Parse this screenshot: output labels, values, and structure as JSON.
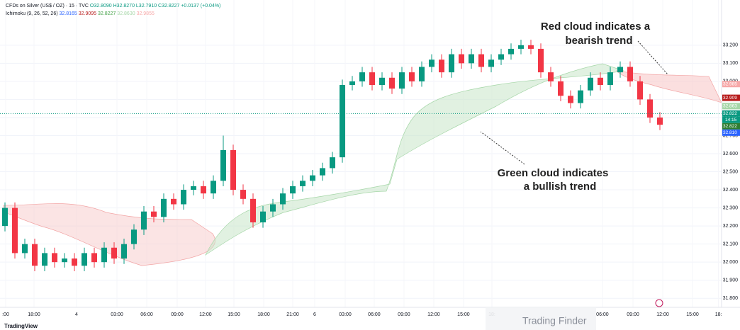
{
  "chart_data": {
    "type": "candlestick",
    "header": "CFDs on Silver (US$ / OZ) · 15 · TVC",
    "ohlc_text": "O32.8090 H32.8270 L32.7910 C32.8227 +0.0137 (+0.04%)",
    "indicator": "Ichimoku (9, 26, 52, 26)",
    "indicator_values": [
      "32.8165",
      "32.9095",
      "32.8227",
      "32.8630",
      "32.9855"
    ],
    "annotations": [
      {
        "lines": [
          "Red cloud indicates a",
          "bearish trend"
        ]
      },
      {
        "lines": [
          "Green cloud indicates",
          "a bullish trend"
        ]
      }
    ],
    "brand": "TradingView",
    "watermark": "Trading Finder",
    "up_color": "#089981",
    "down_color": "#f23645",
    "x": [
      0.5,
      1.5,
      2.5,
      3.5,
      4.5,
      5.5,
      6.5,
      7.5,
      8.5,
      9.5,
      10.5,
      11.5,
      12.5,
      13.5,
      14.5,
      15.5,
      16.5,
      17.5,
      18.5,
      19.5,
      20.5,
      21.5,
      22.5,
      23.5,
      24.5,
      25.5,
      26.5,
      27.5,
      28.5,
      29.5,
      30.5,
      31.5,
      32.5,
      33.5,
      34.5,
      35.5,
      36.5,
      37.5,
      38.5,
      39.5,
      40.5,
      41.5,
      42.5,
      43.5,
      44.5,
      45.5,
      46.5,
      47.5,
      48.5,
      49.5,
      50.5,
      51.5,
      52.5,
      53.5,
      54.5,
      55.5,
      56.5,
      57.5,
      58.5,
      59.5,
      60.5,
      61.5,
      62.5,
      63.5,
      64.5,
      65.5,
      66.5
    ],
    "open": [
      32.2,
      32.3,
      32.05,
      32.1,
      31.98,
      32.05,
      32.0,
      32.02,
      31.98,
      32.05,
      32.0,
      32.08,
      32.02,
      32.1,
      32.18,
      32.28,
      32.25,
      32.35,
      32.32,
      32.4,
      32.42,
      32.38,
      32.45,
      32.62,
      32.4,
      32.35,
      32.22,
      32.28,
      32.32,
      32.38,
      32.42,
      32.45,
      32.48,
      32.52,
      32.58,
      32.98,
      33.0,
      33.05,
      32.98,
      33.02,
      32.96,
      33.05,
      33.0,
      33.08,
      33.12,
      33.05,
      33.15,
      33.1,
      33.15,
      33.08,
      33.12,
      33.15,
      33.18,
      33.2,
      33.18,
      33.05,
      33.0,
      32.92,
      32.88,
      32.95,
      33.02,
      32.98,
      33.05,
      33.08,
      33.0,
      32.9,
      32.8
    ],
    "high": [
      32.33,
      32.33,
      32.13,
      32.13,
      32.08,
      32.08,
      32.05,
      32.05,
      32.08,
      32.08,
      32.11,
      32.11,
      32.13,
      32.21,
      32.31,
      32.31,
      32.38,
      32.38,
      32.43,
      32.45,
      32.45,
      32.48,
      32.7,
      32.65,
      32.43,
      32.38,
      32.31,
      32.35,
      32.41,
      32.45,
      32.48,
      32.51,
      32.55,
      32.61,
      33.01,
      33.03,
      33.08,
      33.08,
      33.05,
      33.05,
      33.08,
      33.08,
      33.11,
      33.15,
      33.15,
      33.18,
      33.18,
      33.18,
      33.18,
      33.15,
      33.18,
      33.21,
      33.23,
      33.23,
      33.21,
      33.08,
      33.03,
      32.95,
      32.98,
      33.05,
      33.05,
      33.08,
      33.11,
      33.11,
      33.03,
      32.93,
      32.83
    ],
    "low": [
      32.17,
      32.02,
      32.02,
      31.95,
      31.95,
      31.97,
      31.97,
      31.95,
      31.95,
      31.97,
      31.97,
      31.99,
      31.99,
      32.07,
      32.15,
      32.22,
      32.22,
      32.29,
      32.29,
      32.37,
      32.35,
      32.35,
      32.42,
      32.37,
      32.32,
      32.19,
      32.19,
      32.25,
      32.29,
      32.35,
      32.39,
      32.42,
      32.45,
      32.49,
      32.55,
      32.95,
      32.97,
      32.95,
      32.95,
      32.93,
      32.93,
      32.97,
      32.97,
      33.05,
      33.02,
      33.02,
      33.07,
      33.07,
      33.05,
      33.05,
      33.09,
      33.12,
      33.15,
      33.15,
      33.02,
      32.97,
      32.89,
      32.85,
      32.85,
      32.92,
      32.95,
      32.95,
      33.02,
      32.97,
      32.87,
      32.77,
      32.73
    ],
    "close": [
      32.3,
      32.05,
      32.1,
      31.98,
      32.05,
      32.0,
      32.02,
      31.98,
      32.05,
      32.0,
      32.08,
      32.02,
      32.1,
      32.18,
      32.28,
      32.25,
      32.35,
      32.32,
      32.4,
      32.42,
      32.38,
      32.45,
      32.62,
      32.4,
      32.35,
      32.22,
      32.28,
      32.32,
      32.38,
      32.42,
      32.45,
      32.48,
      32.52,
      32.58,
      32.98,
      33.0,
      33.05,
      32.98,
      33.02,
      32.96,
      33.05,
      33.0,
      33.08,
      33.12,
      33.05,
      33.15,
      33.1,
      33.15,
      33.08,
      33.12,
      33.15,
      33.18,
      33.2,
      33.18,
      33.05,
      33.0,
      32.92,
      32.88,
      32.95,
      33.02,
      32.98,
      33.05,
      33.08,
      33.0,
      32.9,
      32.8,
      32.76
    ],
    "xlim": [
      0,
      72.5
    ],
    "xticks": [
      {
        "value": 0.57,
        "label": ":00"
      },
      {
        "value": 3.43,
        "label": "18:00"
      },
      {
        "value": 7.71,
        "label": "4"
      },
      {
        "value": 11.79,
        "label": "03:00"
      },
      {
        "value": 14.79,
        "label": "06:00"
      },
      {
        "value": 17.86,
        "label": "09:00"
      },
      {
        "value": 20.71,
        "label": "12:00"
      },
      {
        "value": 23.57,
        "label": "15:00"
      },
      {
        "value": 26.57,
        "label": "18:00"
      },
      {
        "value": 29.5,
        "label": "21:00"
      },
      {
        "value": 31.71,
        "label": "6"
      },
      {
        "value": 34.79,
        "label": "03:00"
      },
      {
        "value": 37.71,
        "label": "06:00"
      },
      {
        "value": 40.71,
        "label": "09:00"
      },
      {
        "value": 43.71,
        "label": "12:00"
      },
      {
        "value": 46.71,
        "label": "15:00"
      },
      {
        "value": 49.57,
        "label": "18:"
      },
      {
        "value": 60.71,
        "label": "06:00"
      },
      {
        "value": 63.79,
        "label": "09:00"
      },
      {
        "value": 66.79,
        "label": "12:00"
      },
      {
        "value": 69.79,
        "label": "15:00"
      },
      {
        "value": 72.4,
        "label": "18:"
      }
    ],
    "ylim": [
      31.75,
      33.45
    ],
    "yticks": [
      {
        "value": 31.8,
        "label": "31.800"
      },
      {
        "value": 31.9,
        "label": "31.900"
      },
      {
        "value": 32.0,
        "label": "32.000"
      },
      {
        "value": 32.1,
        "label": "32.100"
      },
      {
        "value": 32.2,
        "label": "32.200"
      },
      {
        "value": 32.3,
        "label": "32.300"
      },
      {
        "value": 32.4,
        "label": "32.400"
      },
      {
        "value": 32.5,
        "label": "32.500"
      },
      {
        "value": 32.6,
        "label": "32.600"
      },
      {
        "value": 32.7,
        "label": "32.700"
      },
      {
        "value": 32.8,
        "label": "32.800"
      },
      {
        "value": 32.9,
        "label": "32.900"
      },
      {
        "value": 33.0,
        "label": "33.000"
      },
      {
        "value": 33.1,
        "label": "33.100"
      },
      {
        "value": 33.2,
        "label": "33.200"
      }
    ],
    "price_labels": [
      {
        "value": 32.985,
        "label": "32.985",
        "color": "#f7a8a8"
      },
      {
        "value": 32.909,
        "label": "32.909",
        "color": "#b71c1c"
      },
      {
        "value": 32.863,
        "label": "32.863",
        "color": "#a5d6a7"
      },
      {
        "value": 32.822,
        "label": "32.822",
        "color": "#089981"
      },
      {
        "value": 32.822,
        "label": "32.822",
        "color": "#2e7d32"
      },
      {
        "value": 32.81,
        "label": "32.810",
        "color": "#2962ff"
      }
    ],
    "countdown": "14:15"
  }
}
